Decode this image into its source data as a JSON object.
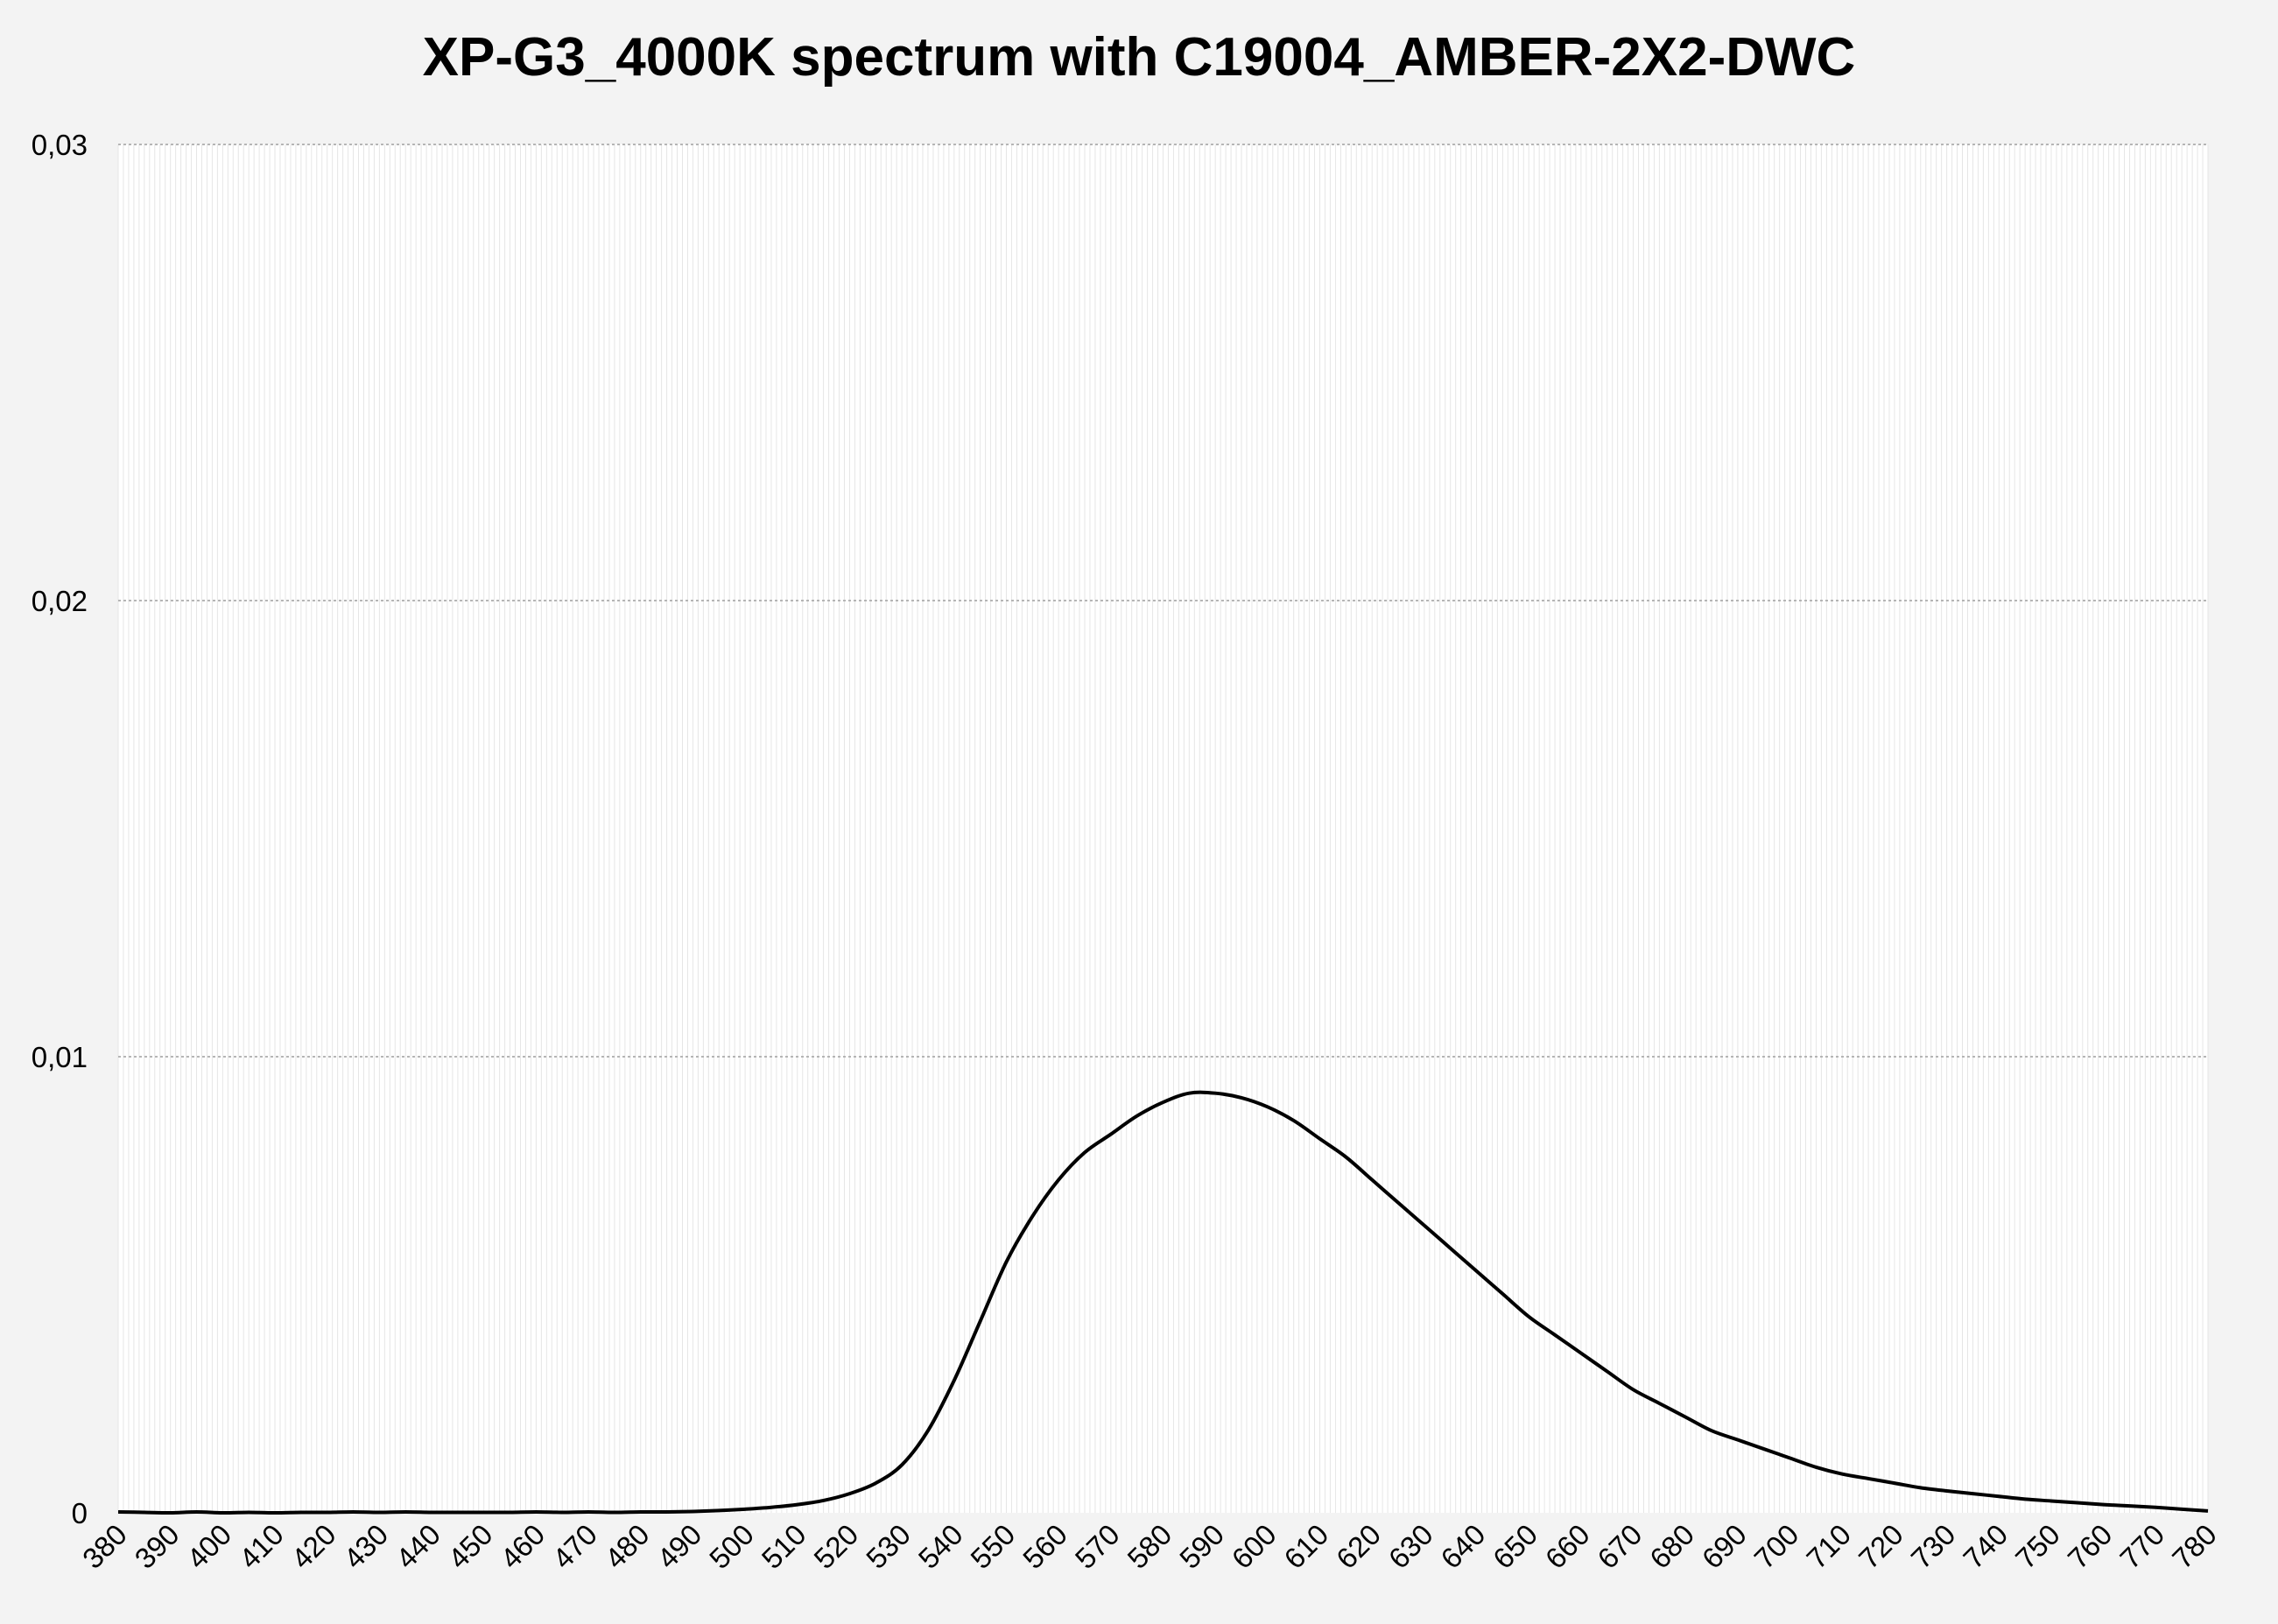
{
  "chart_data": {
    "type": "line",
    "title": "XP-G3_4000K spectrum with C19004_AMBER-2X2-DWC",
    "xlabel": "",
    "ylabel": "",
    "xlim": [
      380,
      780
    ],
    "ylim": [
      0,
      0.03
    ],
    "x_ticks": [
      "380",
      "390",
      "400",
      "410",
      "420",
      "430",
      "440",
      "450",
      "460",
      "470",
      "480",
      "490",
      "500",
      "510",
      "520",
      "530",
      "540",
      "550",
      "560",
      "570",
      "580",
      "590",
      "600",
      "610",
      "620",
      "630",
      "640",
      "650",
      "660",
      "670",
      "680",
      "690",
      "700",
      "710",
      "720",
      "730",
      "740",
      "750",
      "760",
      "770",
      "780"
    ],
    "y_ticks": [
      {
        "value": 0,
        "label": "0"
      },
      {
        "value": 0.01,
        "label": "0,01"
      },
      {
        "value": 0.02,
        "label": "0,02"
      },
      {
        "value": 0.03,
        "label": "0,03"
      }
    ],
    "grid": "horizontal major at 0.01 steps, vertical minor every 1 nm",
    "legend": "none",
    "series": [
      {
        "color": "#000000",
        "x": [
          380,
          385,
          390,
          395,
          400,
          405,
          410,
          415,
          420,
          425,
          430,
          435,
          440,
          445,
          450,
          455,
          460,
          465,
          470,
          475,
          480,
          485,
          490,
          495,
          500,
          505,
          510,
          515,
          520,
          525,
          530,
          535,
          540,
          545,
          550,
          555,
          560,
          565,
          570,
          575,
          580,
          585,
          590,
          595,
          600,
          605,
          610,
          615,
          620,
          625,
          630,
          635,
          640,
          645,
          650,
          655,
          660,
          665,
          670,
          675,
          680,
          685,
          690,
          695,
          700,
          705,
          710,
          715,
          720,
          725,
          730,
          735,
          740,
          745,
          750,
          755,
          760,
          765,
          770,
          775,
          780
        ],
        "y": [
          2e-05,
          1e-05,
          0,
          2e-05,
          0,
          1e-05,
          0,
          1e-05,
          1e-05,
          2e-05,
          1e-05,
          2e-05,
          1e-05,
          1e-05,
          1e-05,
          1e-05,
          2e-05,
          1e-05,
          2e-05,
          1e-05,
          2e-05,
          2e-05,
          3e-05,
          5e-05,
          8e-05,
          0.00012,
          0.00018,
          0.00027,
          0.00042,
          0.00065,
          0.00105,
          0.0018,
          0.0029,
          0.0042,
          0.0055,
          0.0065,
          0.0073,
          0.0079,
          0.0083,
          0.0087,
          0.009,
          0.0092,
          0.0092,
          0.0091,
          0.0089,
          0.0086,
          0.0082,
          0.0078,
          0.0073,
          0.0068,
          0.0063,
          0.0058,
          0.0053,
          0.0048,
          0.0043,
          0.0039,
          0.0035,
          0.0031,
          0.0027,
          0.0024,
          0.0021,
          0.0018,
          0.0016,
          0.0014,
          0.0012,
          0.001,
          0.00085,
          0.00075,
          0.00065,
          0.00055,
          0.00048,
          0.00042,
          0.00036,
          0.0003,
          0.00026,
          0.00022,
          0.00018,
          0.00015,
          0.00012,
          8e-05,
          4e-05
        ]
      }
    ]
  }
}
